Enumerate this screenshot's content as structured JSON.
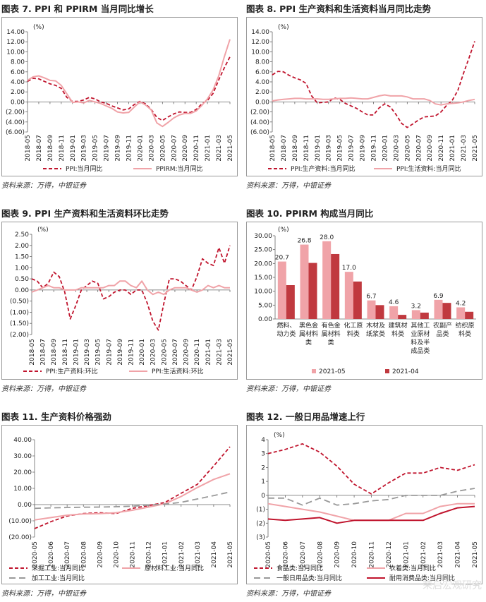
{
  "source_note": "资料来源：万得，中银证券",
  "watermark": "荣启宏观研究",
  "chart_data": [
    {
      "id": "c7",
      "type": "line",
      "title": "图表 7. PPI 和 PPIRM 当月同比增长",
      "unit": "(%)",
      "x": [
        "2018-05",
        "2018-06",
        "2018-07",
        "2018-08",
        "2018-09",
        "2018-10",
        "2018-11",
        "2018-12",
        "2019-01",
        "2019-02",
        "2019-03",
        "2019-04",
        "2019-05",
        "2019-06",
        "2019-07",
        "2019-08",
        "2019-09",
        "2019-10",
        "2019-11",
        "2019-12",
        "2020-01",
        "2020-02",
        "2020-03",
        "2020-04",
        "2020-05",
        "2020-06",
        "2020-07",
        "2020-08",
        "2020-09",
        "2020-10",
        "2020-11",
        "2020-12",
        "2021-01",
        "2021-02",
        "2021-03",
        "2021-04",
        "2021-05"
      ],
      "x_ticks": [
        "2018-05",
        "2018-07",
        "2018-09",
        "2018-11",
        "2019-01",
        "2019-03",
        "2019-05",
        "2019-07",
        "2019-09",
        "2019-11",
        "2020-01",
        "2020-03",
        "2020-05",
        "2020-07",
        "2020-09",
        "2020-11",
        "2021-01",
        "2021-03",
        "2021-05"
      ],
      "ylim": [
        -6,
        14
      ],
      "yticks": [
        -6,
        -4,
        -2,
        0,
        2,
        4,
        6,
        8,
        10,
        12,
        14
      ],
      "series": [
        {
          "name": "PPI:当月同比",
          "style": "dashed",
          "color": "#c0142d",
          "values": [
            4.1,
            4.7,
            4.6,
            4.1,
            3.6,
            3.3,
            2.7,
            0.9,
            0.1,
            0.1,
            0.4,
            0.9,
            0.6,
            0.0,
            -0.3,
            -0.8,
            -1.2,
            -1.6,
            -1.4,
            -0.5,
            0.1,
            -0.4,
            -1.5,
            -3.1,
            -3.7,
            -3.0,
            -2.4,
            -2.0,
            -2.1,
            -2.1,
            -1.5,
            -0.4,
            0.3,
            1.7,
            4.4,
            6.8,
            9.0
          ]
        },
        {
          "name": "PPIRM:当月同比",
          "style": "solid",
          "color": "#f0a3a8",
          "values": [
            4.3,
            5.0,
            5.2,
            4.8,
            4.3,
            4.2,
            3.3,
            1.6,
            -0.1,
            0.0,
            -0.2,
            0.3,
            0.0,
            -0.3,
            -0.8,
            -1.3,
            -2.0,
            -2.2,
            -2.1,
            -1.0,
            0.0,
            -0.6,
            -1.6,
            -4.2,
            -4.9,
            -4.1,
            -3.2,
            -2.6,
            -2.3,
            -2.3,
            -1.8,
            -0.7,
            0.6,
            2.4,
            5.2,
            9.0,
            12.5
          ]
        }
      ]
    },
    {
      "id": "c8",
      "type": "line",
      "title": "图表 8. PPI 生产资料和生活资料当月同比走势",
      "unit": "(%)",
      "x": [
        "2018-05",
        "2018-06",
        "2018-07",
        "2018-08",
        "2018-09",
        "2018-10",
        "2018-11",
        "2018-12",
        "2019-01",
        "2019-02",
        "2019-03",
        "2019-04",
        "2019-05",
        "2019-06",
        "2019-07",
        "2019-08",
        "2019-09",
        "2019-10",
        "2019-11",
        "2019-12",
        "2020-01",
        "2020-02",
        "2020-03",
        "2020-04",
        "2020-05",
        "2020-06",
        "2020-07",
        "2020-08",
        "2020-09",
        "2020-10",
        "2020-11",
        "2020-12",
        "2021-01",
        "2021-02",
        "2021-03",
        "2021-04",
        "2021-05"
      ],
      "x_ticks": [
        "2018-05",
        "2018-07",
        "2018-09",
        "2018-11",
        "2019-01",
        "2019-03",
        "2019-05",
        "2019-07",
        "2019-09",
        "2019-11",
        "2020-01",
        "2020-03",
        "2020-05",
        "2020-07",
        "2020-09",
        "2020-11",
        "2021-01",
        "2021-03",
        "2021-05"
      ],
      "ylim": [
        -6,
        14
      ],
      "yticks": [
        -6,
        -4,
        -2,
        0,
        2,
        4,
        6,
        8,
        10,
        12,
        14
      ],
      "series": [
        {
          "name": "PPI:生产资料:当月同比",
          "style": "dashed",
          "color": "#c0142d",
          "values": [
            5.4,
            6.1,
            6.0,
            5.3,
            4.8,
            4.4,
            3.7,
            1.2,
            -0.2,
            -0.1,
            0.0,
            0.8,
            0.5,
            -0.3,
            -0.8,
            -1.3,
            -2.0,
            -2.6,
            -2.6,
            -1.2,
            -0.4,
            -1.0,
            -2.5,
            -4.3,
            -5.1,
            -4.4,
            -3.6,
            -3.0,
            -2.9,
            -2.8,
            -2.0,
            -0.7,
            0.3,
            2.3,
            5.7,
            8.8,
            12.1
          ]
        },
        {
          "name": "PPI:生活资料:当月同比",
          "style": "solid",
          "color": "#f0a3a8",
          "values": [
            0.2,
            0.4,
            0.5,
            0.6,
            0.7,
            0.7,
            0.6,
            0.6,
            0.6,
            0.5,
            0.5,
            0.6,
            0.7,
            0.7,
            0.8,
            0.7,
            0.6,
            0.6,
            0.9,
            1.2,
            1.4,
            1.2,
            1.2,
            1.2,
            1.0,
            0.6,
            0.6,
            0.6,
            0.3,
            -0.4,
            -0.6,
            -0.4,
            -0.3,
            -0.2,
            0.0,
            0.3,
            0.5
          ]
        }
      ]
    },
    {
      "id": "c9",
      "type": "line",
      "title": "图表 9. PPI 生产资料和生活资料环比走势",
      "unit": "(%)",
      "x": [
        "2018-05",
        "2018-06",
        "2018-07",
        "2018-08",
        "2018-09",
        "2018-10",
        "2018-11",
        "2018-12",
        "2019-01",
        "2019-02",
        "2019-03",
        "2019-04",
        "2019-05",
        "2019-06",
        "2019-07",
        "2019-08",
        "2019-09",
        "2019-10",
        "2019-11",
        "2019-12",
        "2020-01",
        "2020-02",
        "2020-03",
        "2020-04",
        "2020-05",
        "2020-06",
        "2020-07",
        "2020-08",
        "2020-09",
        "2020-10",
        "2020-11",
        "2020-12",
        "2021-01",
        "2021-02",
        "2021-03",
        "2021-04",
        "2021-05"
      ],
      "x_ticks": [
        "2018-05",
        "2018-07",
        "2018-09",
        "2018-11",
        "2019-01",
        "2019-03",
        "2019-05",
        "2019-07",
        "2019-09",
        "2019-11",
        "2020-01",
        "2020-03",
        "2020-05",
        "2020-07",
        "2020-09",
        "2020-11",
        "2021-01",
        "2021-03",
        "2021-05"
      ],
      "ylim": [
        -2,
        2.5
      ],
      "yticks": [
        -2,
        -1.5,
        -1,
        -0.5,
        0,
        0.5,
        1,
        1.5,
        2,
        2.5
      ],
      "series": [
        {
          "name": "PPI:生产资料:环比",
          "style": "dashed",
          "color": "#c0142d",
          "values": [
            0.5,
            0.4,
            0.1,
            0.3,
            0.8,
            0.6,
            -0.1,
            -1.3,
            -0.7,
            0.0,
            0.2,
            0.4,
            0.3,
            -0.4,
            -0.3,
            -0.1,
            0.0,
            0.0,
            -0.2,
            0.0,
            0.0,
            -0.6,
            -1.4,
            -1.8,
            -0.6,
            0.5,
            0.5,
            0.4,
            0.2,
            0.0,
            0.6,
            1.4,
            1.2,
            1.1,
            1.9,
            1.2,
            2.0
          ]
        },
        {
          "name": "PPI:生活资料:环比",
          "style": "solid",
          "color": "#f0a3a8",
          "values": [
            -0.1,
            0.0,
            0.1,
            0.2,
            0.1,
            0.1,
            0.0,
            0.0,
            0.0,
            0.1,
            0.1,
            0.1,
            0.1,
            0.1,
            0.2,
            0.2,
            0.4,
            0.4,
            0.2,
            0.1,
            0.4,
            0.0,
            -0.2,
            -0.1,
            -0.2,
            0.0,
            0.1,
            0.1,
            0.1,
            0.0,
            -0.1,
            0.0,
            0.2,
            0.1,
            0.2,
            0.1,
            0.1
          ]
        }
      ]
    },
    {
      "id": "c10",
      "type": "bar",
      "title": "图表 10. PPIRM 构成当月同比",
      "unit": "(%)",
      "categories": [
        "燃料、动力类",
        "黑色金属材料类",
        "有色金属材料类",
        "化工原料类",
        "木材及纸浆类",
        "建筑材料类",
        "其他工业原材料及半成品类",
        "农副产品类",
        "纺织原料类"
      ],
      "category_lines": [
        [
          "燃料、",
          "动力类"
        ],
        [
          "黑色金",
          "属材料",
          "类"
        ],
        [
          "有色金",
          "属材料",
          "类"
        ],
        [
          "化工原",
          "料类"
        ],
        [
          "木材及",
          "纸浆类"
        ],
        [
          "建筑材",
          "料类"
        ],
        [
          "其他工",
          "业原材",
          "料及半",
          "成品类"
        ],
        [
          "农副产",
          "品类"
        ],
        [
          "纺织原",
          "料类"
        ]
      ],
      "ylim": [
        0,
        30
      ],
      "yticks": [
        0,
        5,
        10,
        15,
        20,
        25,
        30
      ],
      "series": [
        {
          "name": "2021-05",
          "color": "#f0a3a8",
          "values": [
            20.7,
            26.8,
            28.0,
            17.0,
            6.7,
            4.6,
            3.2,
            6.9,
            4.2
          ],
          "labels": [
            "20.7",
            "26.8",
            "28.0",
            "17.0",
            "6.7",
            "4.6",
            "3.2",
            "6.9",
            "4.2"
          ]
        },
        {
          "name": "2021-04",
          "color": "#c0393f",
          "values": [
            12.2,
            20.2,
            23.4,
            13.5,
            5.0,
            1.5,
            2.3,
            5.8,
            2.6
          ]
        }
      ]
    },
    {
      "id": "c11",
      "type": "line",
      "title": "图表 11. 生产资料价格强劲",
      "x": [
        "2020-05",
        "2020-06",
        "2020-07",
        "2020-08",
        "2020-09",
        "2020-10",
        "2020-11",
        "2020-12",
        "2021-01",
        "2021-02",
        "2021-03",
        "2021-04",
        "2021-05"
      ],
      "x_ticks": [
        "2020-05",
        "2020-06",
        "2020-07",
        "2020-08",
        "2020-09",
        "2020-10",
        "2020-11",
        "2020-12",
        "2021-01",
        "2021-02",
        "2021-03",
        "2021-04",
        "2021-05"
      ],
      "ylim": [
        -20,
        40
      ],
      "yticks": [
        -20,
        -10,
        0,
        10,
        20,
        30,
        40
      ],
      "series": [
        {
          "name": "采掘工业:当月同比",
          "style": "dashed",
          "color": "#c0142d",
          "values": [
            -14.8,
            -10.5,
            -7.0,
            -5.5,
            -5.0,
            -5.5,
            -2.3,
            -0.6,
            1.3,
            7.0,
            12.5,
            23.8,
            35.6
          ]
        },
        {
          "name": "原材料工业:当月同比",
          "style": "solid",
          "color": "#f0a3a8",
          "values": [
            -9.5,
            -8.0,
            -6.5,
            -5.8,
            -5.5,
            -5.0,
            -3.5,
            -1.5,
            0.5,
            5.0,
            10.5,
            15.5,
            19.0
          ]
        },
        {
          "name": "加工工业:当月同比",
          "style": "dashed",
          "color": "#999999",
          "values": [
            -2.3,
            -2.0,
            -1.8,
            -1.6,
            -1.5,
            -1.3,
            -1.0,
            -0.3,
            0.3,
            1.4,
            3.5,
            5.5,
            7.8
          ]
        }
      ]
    },
    {
      "id": "c12",
      "type": "line",
      "title": "图表 12. 一般日用品增速上行",
      "unit": "(%)",
      "x": [
        "2020-05",
        "2020-06",
        "2020-07",
        "2020-08",
        "2020-09",
        "2020-10",
        "2020-11",
        "2020-12",
        "2021-01",
        "2021-02",
        "2021-03",
        "2021-04",
        "2021-05"
      ],
      "x_ticks": [
        "2020-05",
        "2020-06",
        "2020-07",
        "2020-08",
        "2020-09",
        "2020-10",
        "2020-11",
        "2020-12",
        "2021-01",
        "2021-02",
        "2021-03",
        "2021-04",
        "2021-05"
      ],
      "ylim": [
        -3,
        4
      ],
      "yticks": [
        -3,
        -2,
        -1,
        0,
        1,
        2,
        3,
        4
      ],
      "y_tick_labels": [
        "(3)",
        "(2)",
        "(1)",
        "0",
        "1",
        "2",
        "3",
        "4"
      ],
      "series": [
        {
          "name": "食品类:当月同比",
          "style": "dashed",
          "color": "#c0142d",
          "values": [
            3.0,
            3.3,
            3.7,
            3.1,
            2.1,
            0.8,
            0.1,
            0.9,
            1.6,
            1.6,
            2.0,
            1.8,
            2.2
          ]
        },
        {
          "name": "衣着类:当月同比",
          "style": "solid",
          "color": "#f0a3a8",
          "values": [
            -0.6,
            -0.8,
            -1.0,
            -1.2,
            -1.5,
            -1.8,
            -1.8,
            -1.8,
            -1.3,
            -1.3,
            -0.8,
            -0.6,
            -0.6
          ]
        },
        {
          "name": "一般日用品类:当月同比",
          "style": "dashed",
          "color": "#999999",
          "values": [
            -0.2,
            -0.2,
            -0.7,
            -0.2,
            -0.7,
            -0.6,
            -0.4,
            -0.3,
            0.0,
            0.0,
            0.0,
            0.3,
            0.5
          ]
        },
        {
          "name": "耐用消费品类:当月同比",
          "style": "solid",
          "color": "#c0142d",
          "values": [
            -1.7,
            -1.8,
            -1.7,
            -1.6,
            -2.0,
            -1.8,
            -1.8,
            -1.8,
            -1.8,
            -1.8,
            -1.3,
            -0.9,
            -0.8
          ]
        }
      ]
    }
  ]
}
